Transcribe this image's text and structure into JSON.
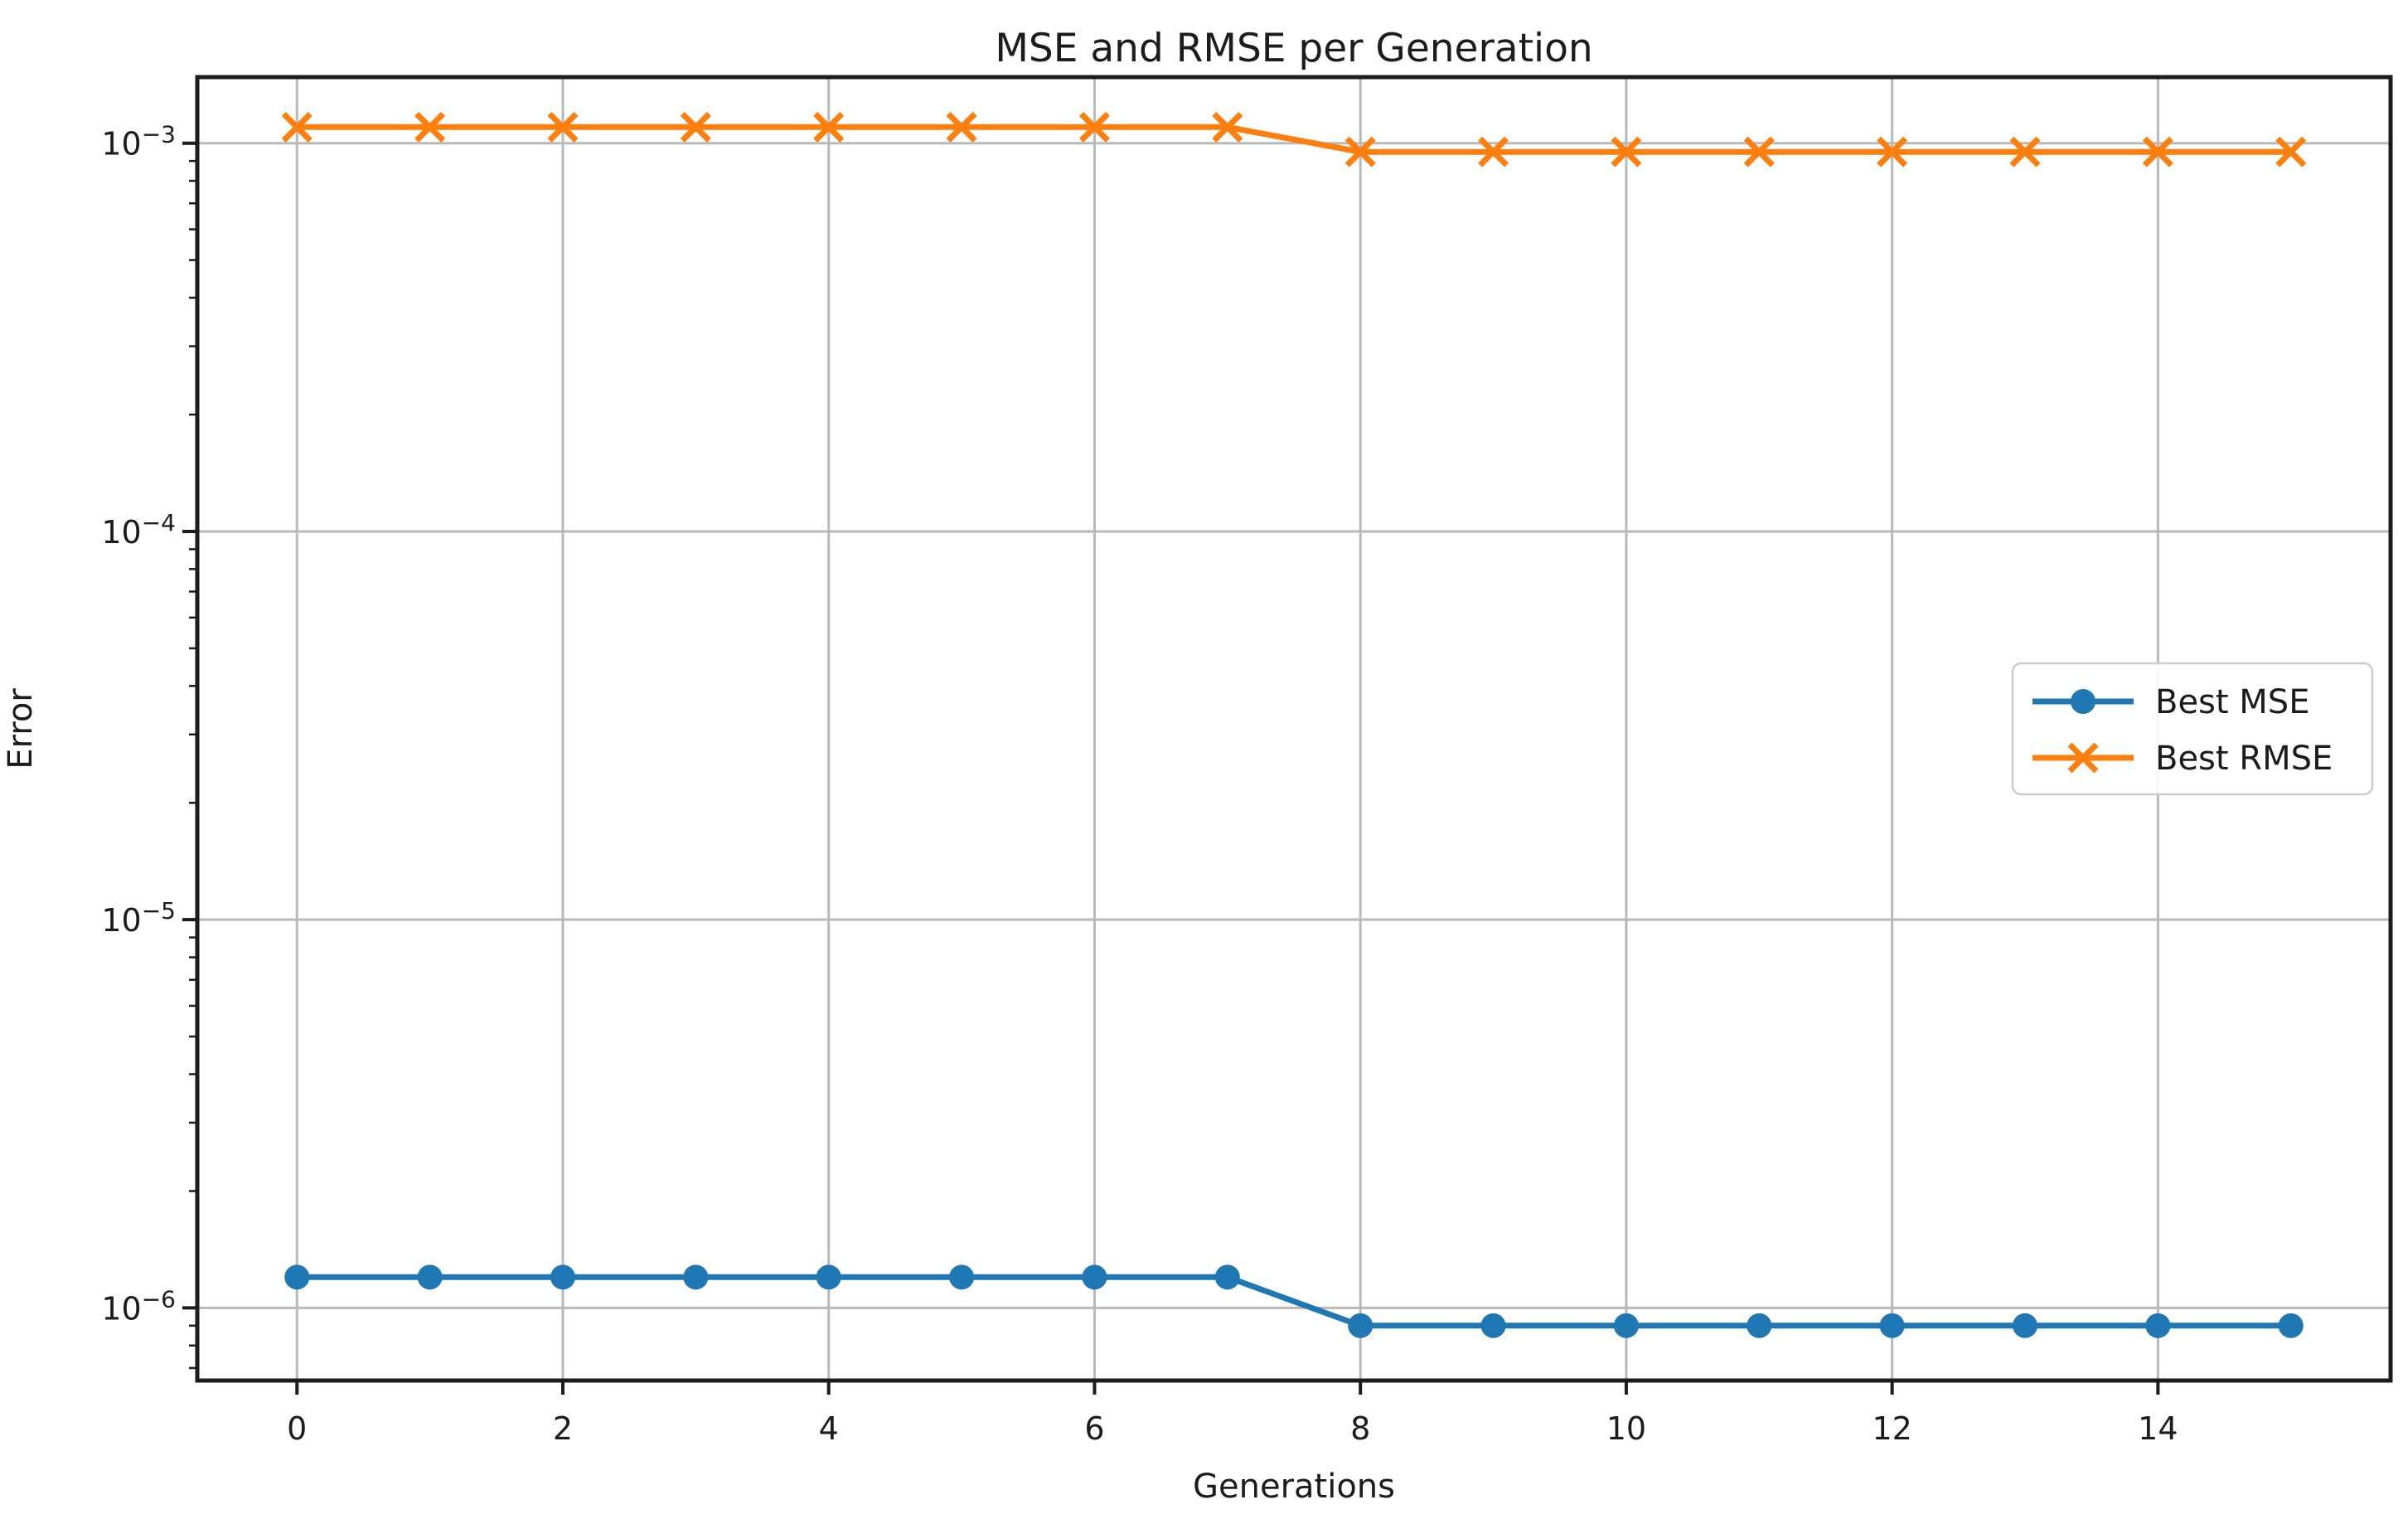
{
  "chart_data": {
    "type": "line",
    "title": "MSE and RMSE per Generation",
    "xlabel": "Generations",
    "ylabel": "Error",
    "yscale": "log",
    "grid": true,
    "legend_position": "center right",
    "x": [
      0,
      1,
      2,
      3,
      4,
      5,
      6,
      7,
      8,
      9,
      10,
      11,
      12,
      13,
      14,
      15
    ],
    "series": [
      {
        "name": "Best MSE",
        "color": "#1f77b4",
        "marker": "circle",
        "values": [
          1.2e-06,
          1.2e-06,
          1.2e-06,
          1.2e-06,
          1.2e-06,
          1.2e-06,
          1.2e-06,
          1.2e-06,
          9e-07,
          9e-07,
          9e-07,
          9e-07,
          9e-07,
          9e-07,
          9e-07,
          9e-07
        ]
      },
      {
        "name": "Best RMSE",
        "color": "#ff7f0e",
        "marker": "x",
        "values": [
          0.0011,
          0.0011,
          0.0011,
          0.0011,
          0.0011,
          0.0011,
          0.0011,
          0.0011,
          0.00095,
          0.00095,
          0.00095,
          0.00095,
          0.00095,
          0.00095,
          0.00095,
          0.00095
        ]
      }
    ],
    "xticks": [
      0,
      2,
      4,
      6,
      8,
      10,
      12,
      14
    ],
    "ytick_exponents": [
      -3,
      -4,
      -5,
      -6
    ],
    "xlim": [
      -0.75,
      15.75
    ],
    "ylim": [
      6.5e-07,
      0.00148
    ],
    "colors": {
      "grid": "#b9b9b9",
      "axis": "#1c1c1c",
      "text": "#1c1c1c",
      "background": "#ffffff",
      "legend_border": "#cccccc"
    }
  }
}
